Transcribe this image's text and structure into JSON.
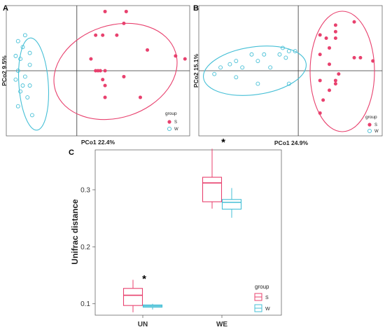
{
  "colors": {
    "S": "#e8416e",
    "W": "#45bfd6"
  },
  "chart_data": [
    {
      "panel": "A",
      "type": "scatter",
      "xlabel": "PCo1 22.4%",
      "ylabel": "PCo2 9.5%",
      "xlim": [
        -0.3,
        0.48
      ],
      "ylim": [
        -0.22,
        0.22
      ],
      "legend_title": "group",
      "legend_position": "bottom-right",
      "series": [
        {
          "name": "S",
          "marker": "filled",
          "points": [
            [
              0.12,
              0.2
            ],
            [
              0.2,
              0.16
            ],
            [
              0.21,
              0.2
            ],
            [
              0.08,
              0.12
            ],
            [
              0.11,
              0.12
            ],
            [
              0.17,
              0.12
            ],
            [
              0.06,
              0.04
            ],
            [
              0.3,
              0.07
            ],
            [
              0.42,
              0.05
            ],
            [
              0.46,
              0.04
            ],
            [
              0.08,
              0.0
            ],
            [
              0.09,
              0.0
            ],
            [
              0.1,
              0.0
            ],
            [
              0.12,
              0.0
            ],
            [
              0.11,
              -0.03
            ],
            [
              0.12,
              -0.05
            ],
            [
              0.2,
              -0.02
            ],
            [
              0.12,
              -0.09
            ],
            [
              0.27,
              -0.09
            ]
          ]
        },
        {
          "name": "W",
          "marker": "open",
          "points": [
            [
              -0.22,
              0.12
            ],
            [
              -0.25,
              0.1
            ],
            [
              -0.23,
              0.08
            ],
            [
              -0.2,
              0.06
            ],
            [
              -0.26,
              0.05
            ],
            [
              -0.24,
              0.04
            ],
            [
              -0.2,
              0.02
            ],
            [
              -0.25,
              0.0
            ],
            [
              -0.22,
              -0.02
            ],
            [
              -0.26,
              -0.03
            ],
            [
              -0.23,
              -0.05
            ],
            [
              -0.2,
              -0.05
            ],
            [
              -0.24,
              -0.07
            ],
            [
              -0.21,
              -0.09
            ],
            [
              -0.25,
              -0.12
            ],
            [
              -0.19,
              -0.15
            ]
          ]
        }
      ]
    },
    {
      "panel": "B",
      "type": "scatter",
      "xlabel": "PCo1 24.9%",
      "ylabel": "PCo2 15.1%",
      "xlim": [
        -0.32,
        0.27
      ],
      "ylim": [
        -0.2,
        0.2
      ],
      "legend_title": "group",
      "legend_position": "bottom-right",
      "series": [
        {
          "name": "S",
          "marker": "filled",
          "points": [
            [
              0.12,
              0.14
            ],
            [
              0.12,
              0.12
            ],
            [
              0.18,
              0.15
            ],
            [
              0.07,
              0.11
            ],
            [
              0.09,
              0.1
            ],
            [
              0.12,
              0.1
            ],
            [
              0.1,
              0.07
            ],
            [
              0.07,
              0.05
            ],
            [
              0.18,
              0.04
            ],
            [
              0.2,
              0.04
            ],
            [
              0.24,
              0.03
            ],
            [
              0.1,
              0.02
            ],
            [
              0.13,
              -0.01
            ],
            [
              0.07,
              -0.03
            ],
            [
              0.12,
              -0.03
            ],
            [
              0.12,
              -0.04
            ],
            [
              0.1,
              -0.06
            ],
            [
              0.08,
              -0.09
            ],
            [
              0.07,
              -0.13
            ]
          ]
        },
        {
          "name": "W",
          "marker": "open",
          "points": [
            [
              -0.05,
              0.07
            ],
            [
              -0.03,
              0.06
            ],
            [
              -0.01,
              0.06
            ],
            [
              -0.06,
              0.05
            ],
            [
              -0.11,
              0.05
            ],
            [
              -0.15,
              0.05
            ],
            [
              -0.04,
              0.04
            ],
            [
              -0.13,
              0.03
            ],
            [
              -0.2,
              0.03
            ],
            [
              -0.22,
              0.02
            ],
            [
              -0.25,
              0.01
            ],
            [
              -0.18,
              0.01
            ],
            [
              -0.09,
              0.01
            ],
            [
              -0.27,
              -0.01
            ],
            [
              -0.2,
              -0.02
            ],
            [
              -0.13,
              -0.04
            ],
            [
              -0.03,
              -0.04
            ]
          ]
        }
      ]
    },
    {
      "panel": "C",
      "type": "box",
      "categories": [
        "UN",
        "WE"
      ],
      "ylabel": "Unifrac distance",
      "ylim": [
        0.08,
        0.37
      ],
      "yticks": [
        "0.1",
        "0.2",
        "0.3"
      ],
      "grid": false,
      "legend_title": "group",
      "legend_position": "bottom-right",
      "significance_marks": [
        {
          "category": "UN",
          "label": "*",
          "y": 0.145
        },
        {
          "category": "WE",
          "label": "*",
          "y": 0.385
        }
      ],
      "series": [
        {
          "name": "S",
          "boxes": [
            {
              "category": "UN",
              "min": 0.085,
              "q1": 0.097,
              "median": 0.115,
              "q3": 0.127,
              "max": 0.142
            },
            {
              "category": "WE",
              "min": 0.267,
              "q1": 0.279,
              "median": 0.312,
              "q3": 0.322,
              "max": 0.372
            }
          ]
        },
        {
          "name": "W",
          "boxes": [
            {
              "category": "UN",
              "min": 0.09,
              "q1": 0.094,
              "median": 0.096,
              "q3": 0.098,
              "max": 0.1
            },
            {
              "category": "WE",
              "min": 0.251,
              "q1": 0.266,
              "median": 0.278,
              "q3": 0.283,
              "max": 0.303
            }
          ]
        }
      ]
    }
  ]
}
